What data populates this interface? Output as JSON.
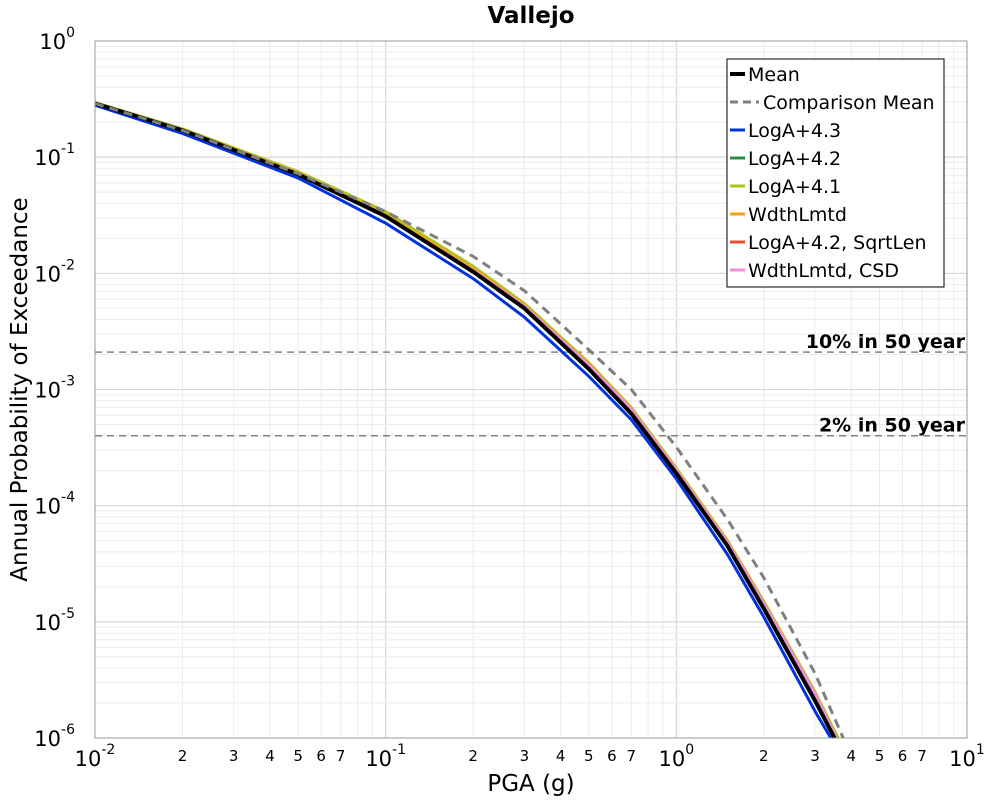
{
  "chart_data": {
    "type": "line",
    "title": "Vallejo",
    "xlabel": "PGA (g)",
    "ylabel": "Annual Probability of Exceedance",
    "x_scale": "log",
    "y_scale": "log",
    "xlim": [
      0.01,
      10
    ],
    "ylim": [
      1e-06,
      1
    ],
    "grid": true,
    "legend_position": "top-right",
    "x_ticks": {
      "major": [
        {
          "value": 0.01,
          "base": "10",
          "exp": "-2"
        },
        {
          "value": 0.1,
          "base": "10",
          "exp": "-1"
        },
        {
          "value": 1,
          "base": "10",
          "exp": "0"
        },
        {
          "value": 10,
          "base": "10",
          "exp": "1"
        }
      ],
      "minor_labels": [
        "2",
        "3",
        "4",
        "5",
        "6",
        "7"
      ]
    },
    "y_ticks": {
      "major": [
        {
          "value": 1,
          "base": "10",
          "exp": "0"
        },
        {
          "value": 0.1,
          "base": "10",
          "exp": "-1"
        },
        {
          "value": 0.01,
          "base": "10",
          "exp": "-2"
        },
        {
          "value": 0.001,
          "base": "10",
          "exp": "-3"
        },
        {
          "value": 0.0001,
          "base": "10",
          "exp": "-4"
        },
        {
          "value": 1e-05,
          "base": "10",
          "exp": "-5"
        },
        {
          "value": 1e-06,
          "base": "10",
          "exp": "-6"
        }
      ]
    },
    "reference_lines": [
      {
        "label": "10% in 50 year",
        "y": 0.0021,
        "color": "#808080",
        "dash": "dashed"
      },
      {
        "label": "2% in 50 year",
        "y": 0.0004,
        "color": "#808080",
        "dash": "dashed"
      }
    ],
    "series": [
      {
        "name": "LogA+4.3",
        "color": "#0033dd",
        "dash": "solid",
        "x": [
          0.01,
          0.02,
          0.05,
          0.1,
          0.2,
          0.3,
          0.5,
          0.7,
          1.0,
          1.5,
          2.0,
          3.0,
          3.4
        ],
        "y": [
          0.28,
          0.16,
          0.066,
          0.027,
          0.009,
          0.0042,
          0.0013,
          0.00055,
          0.00017,
          3.8e-05,
          1.1e-05,
          1.7e-06,
          1e-06
        ]
      },
      {
        "name": "LogA+4.2",
        "color": "#2e8b3e",
        "dash": "solid",
        "x": [
          0.01,
          0.02,
          0.05,
          0.1,
          0.2,
          0.3,
          0.5,
          0.7,
          1.0,
          1.5,
          2.0,
          3.0,
          3.6
        ],
        "y": [
          0.29,
          0.17,
          0.071,
          0.031,
          0.0105,
          0.0051,
          0.0016,
          0.00066,
          0.0002,
          4.8e-05,
          1.4e-05,
          2.4e-06,
          1e-06
        ]
      },
      {
        "name": "LogA+4.1",
        "color": "#a8c81e",
        "dash": "solid",
        "x": [
          0.01,
          0.02,
          0.05,
          0.1,
          0.2,
          0.3,
          0.5,
          0.7,
          1.0,
          1.5,
          2.0,
          3.0,
          3.6
        ],
        "y": [
          0.295,
          0.175,
          0.075,
          0.034,
          0.0115,
          0.0055,
          0.0017,
          0.0007,
          0.00021,
          5e-05,
          1.5e-05,
          2.5e-06,
          1e-06
        ]
      },
      {
        "name": "WdthLmtd",
        "color": "#f5a31a",
        "dash": "solid",
        "x": [
          0.01,
          0.02,
          0.05,
          0.1,
          0.2,
          0.3,
          0.5,
          0.7,
          1.0,
          1.5,
          2.0,
          3.0,
          3.55
        ],
        "y": [
          0.29,
          0.172,
          0.073,
          0.032,
          0.011,
          0.0053,
          0.00165,
          0.00068,
          0.000205,
          4.9e-05,
          1.45e-05,
          2.4e-06,
          1e-06
        ]
      },
      {
        "name": "LogA+4.2, SqrtLen",
        "color": "#e8502a",
        "dash": "solid",
        "x": [
          0.01,
          0.02,
          0.05,
          0.1,
          0.2,
          0.3,
          0.5,
          0.7,
          1.0,
          1.5,
          2.0,
          3.0,
          3.5
        ],
        "y": [
          0.289,
          0.169,
          0.071,
          0.031,
          0.0104,
          0.005,
          0.0016,
          0.00065,
          0.0002,
          4.7e-05,
          1.4e-05,
          2.3e-06,
          1e-06
        ]
      },
      {
        "name": "WdthLmtd, CSD",
        "color": "#f28ce0",
        "dash": "solid",
        "x": [
          0.01,
          0.02,
          0.05,
          0.1,
          0.2,
          0.3,
          0.5,
          0.7,
          1.0,
          1.5,
          2.0,
          3.0,
          3.55
        ],
        "y": [
          0.29,
          0.171,
          0.072,
          0.031,
          0.0106,
          0.0052,
          0.00162,
          0.00067,
          0.000202,
          4.8e-05,
          1.43e-05,
          2.4e-06,
          1e-06
        ]
      },
      {
        "name": "Mean",
        "color": "#000000",
        "dash": "solid",
        "width": 4,
        "x": [
          0.01,
          0.02,
          0.05,
          0.1,
          0.2,
          0.3,
          0.5,
          0.7,
          1.0,
          1.5,
          2.0,
          3.0,
          3.5
        ],
        "y": [
          0.29,
          0.17,
          0.071,
          0.031,
          0.0103,
          0.005,
          0.0015,
          0.00062,
          0.00019,
          4.5e-05,
          1.3e-05,
          2.1e-06,
          1e-06
        ]
      },
      {
        "name": "Comparison Mean",
        "color": "#808080",
        "dash": "dashed",
        "width": 3,
        "x": [
          0.01,
          0.02,
          0.05,
          0.1,
          0.2,
          0.3,
          0.5,
          0.7,
          1.0,
          1.5,
          2.0,
          3.0,
          3.75
        ],
        "y": [
          0.29,
          0.17,
          0.072,
          0.034,
          0.014,
          0.0071,
          0.0022,
          0.001,
          0.00032,
          7.6e-05,
          2.4e-05,
          3.6e-06,
          1e-06
        ]
      }
    ],
    "legend": [
      "Mean",
      "Comparison Mean",
      "LogA+4.3",
      "LogA+4.2",
      "LogA+4.1",
      "WdthLmtd",
      "LogA+4.2, SqrtLen",
      "WdthLmtd, CSD"
    ]
  }
}
